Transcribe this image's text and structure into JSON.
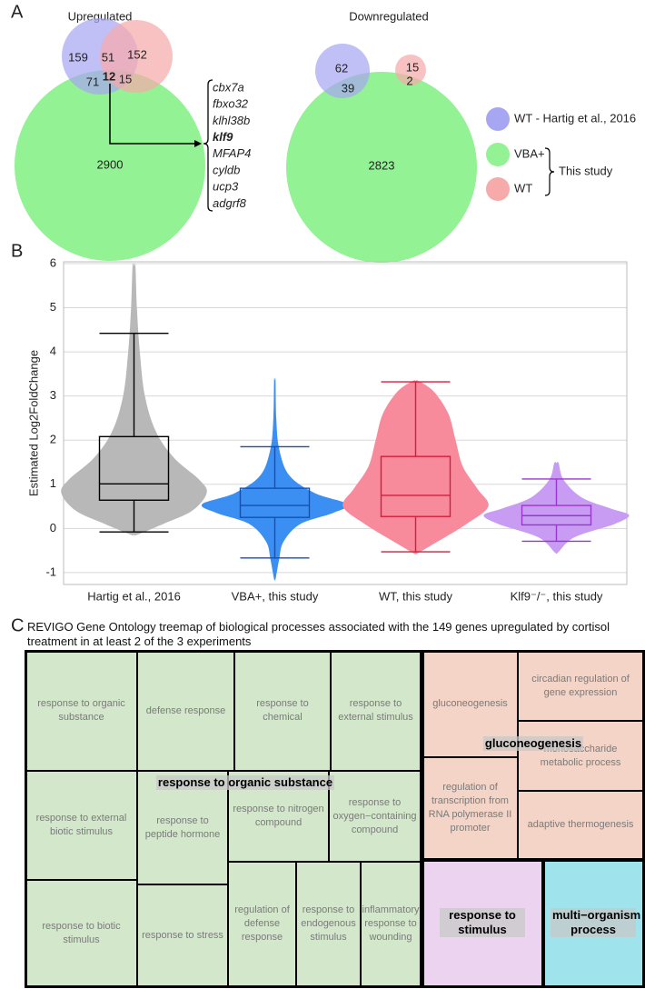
{
  "chart_data": [
    {
      "type": "venn",
      "panel": "A",
      "title": "Upregulated",
      "values": [
        159,
        51,
        152,
        71,
        12,
        15,
        2900
      ],
      "sets": [
        {
          "name": "WT - Hartig et al., 2016",
          "color": "#a7a6f3"
        },
        {
          "name": "VBA+",
          "color": "#93f293"
        },
        {
          "name": "WT",
          "color": "#f6aaaa"
        }
      ],
      "bracket_label": "This study",
      "genes": [
        "cbx7a",
        "fbxo32",
        "klhl38b",
        "klf9",
        "MFAP4",
        "cyldb",
        "ucp3",
        "adgrf8"
      ]
    },
    {
      "type": "venn",
      "title": "Downregulated",
      "values": [
        62,
        15,
        39,
        2,
        2823
      ]
    },
    {
      "type": "violin",
      "panel": "B",
      "ylabel": "Estimated Log2FoldChange",
      "categories": [
        "Hartig et al., 2016",
        "VBA+, this study",
        "WT, this study",
        "Klf9⁻/⁻, this study"
      ],
      "ylim": [
        -1.27,
        6.04
      ],
      "yticks": [
        -1,
        0,
        1,
        2,
        3,
        4,
        5,
        6
      ],
      "grid": true,
      "boxes": [
        {
          "fill": "#b8b8b8",
          "color": "#000000",
          "min": -0.08,
          "q1": 0.64,
          "median": 1.01,
          "q3": 2.08,
          "max": 4.42,
          "density": {
            "y": [
              5.94,
              5,
              4,
              3,
              2.2,
              1.6,
              1.1,
              0.8,
              0.4,
              0.1,
              -0.14
            ],
            "width": [
              0.02,
              0.04,
              0.08,
              0.15,
              0.3,
              0.55,
              0.9,
              1,
              0.8,
              0.4,
              0.05
            ]
          }
        },
        {
          "fill": "#3b8ef2",
          "color": "#1450b0",
          "min": -0.67,
          "q1": 0.25,
          "median": 0.52,
          "q3": 0.91,
          "max": 1.85,
          "density": {
            "y": [
              3.35,
              2.5,
              1.8,
              1.2,
              0.8,
              0.55,
              0.35,
              0.1,
              -0.3,
              -0.7,
              -1.15
            ],
            "width": [
              0.01,
              0.02,
              0.06,
              0.2,
              0.55,
              1,
              0.8,
              0.35,
              0.12,
              0.06,
              0.01
            ]
          }
        },
        {
          "fill": "#f88b9b",
          "color": "#d21e3a",
          "min": -0.53,
          "q1": 0.27,
          "median": 0.75,
          "q3": 1.63,
          "max": 3.32,
          "density": {
            "y": [
              3.34,
              3.1,
              2.6,
              2,
              1.4,
              0.9,
              0.5,
              0.1,
              -0.3,
              -0.57
            ],
            "width": [
              0.04,
              0.25,
              0.45,
              0.55,
              0.65,
              0.85,
              1,
              0.7,
              0.3,
              0.02
            ]
          }
        },
        {
          "fill": "#c99cf3",
          "color": "#9a36cf",
          "min": -0.29,
          "q1": 0.08,
          "median": 0.29,
          "q3": 0.52,
          "max": 1.12,
          "density": {
            "y": [
              1.48,
              1.1,
              0.7,
              0.45,
              0.3,
              0.1,
              -0.2,
              -0.55
            ],
            "width": [
              0.03,
              0.1,
              0.35,
              0.75,
              1,
              0.8,
              0.25,
              0.02
            ]
          }
        }
      ]
    },
    {
      "type": "treemap",
      "panel": "C",
      "title": "REVIGO Gene Ontology treemap of biological processes associated with the 149 genes upregulated by cortisol treatment in at least 2 of the 3 experiments",
      "groups": [
        {
          "name": "response to organic substance",
          "color": "#d3e8cb",
          "items": [
            "response to organic substance",
            "defense response",
            "response to chemical",
            "response to external stimulus",
            "response to external biotic stimulus",
            "response to biotic stimulus",
            "response to peptide hormone",
            "response to stress",
            "response to nitrogen compound",
            "response to oxygen−containing compound",
            "regulation of defense response",
            "response to endogenous stimulus",
            "inflammatory response to wounding"
          ]
        },
        {
          "name": "gluconeogenesis",
          "color": "#f4d4c6",
          "items": [
            "gluconeogenesis",
            "regulation of transcription from RNA polymerase II promoter",
            "circadian regulation of gene expression",
            "monosaccharide metabolic process",
            "adaptive thermogenesis"
          ]
        },
        {
          "name": "response to stimulus",
          "color": "#ecd3f0",
          "items": []
        },
        {
          "name": "multi−organism process",
          "color": "#9fe3ec",
          "items": []
        }
      ]
    }
  ]
}
